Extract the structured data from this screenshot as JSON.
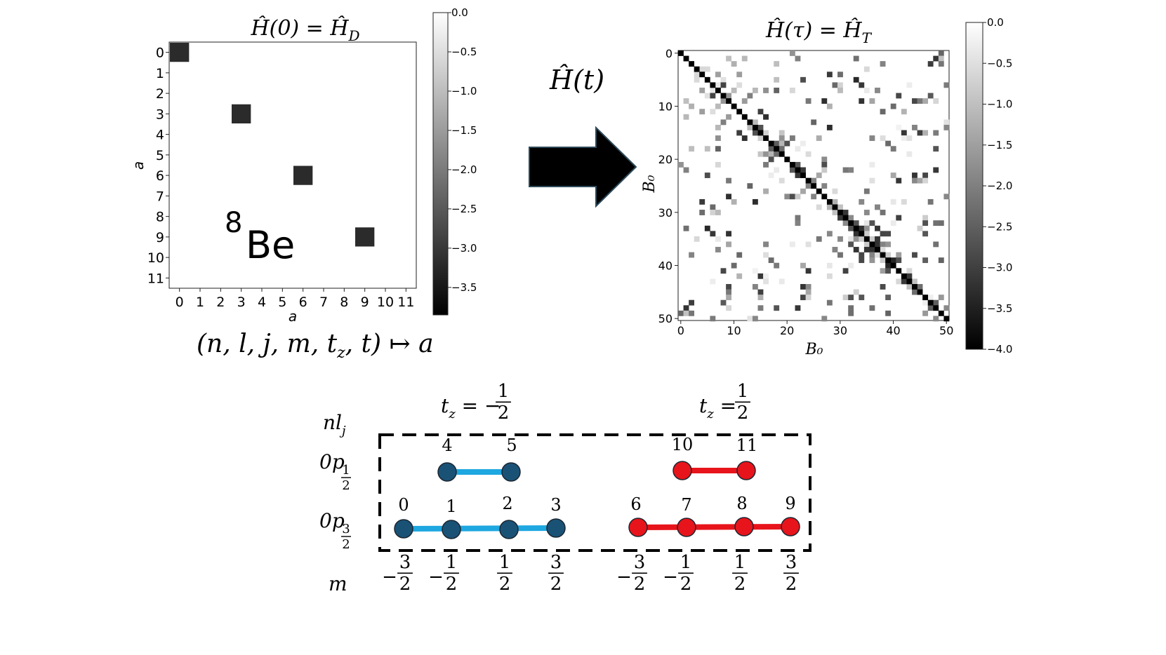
{
  "left_panel": {
    "title": "Ĥ(0) = Ĥ_D",
    "title_main": "Ĥ(0) = Ĥ",
    "title_sub": "D",
    "xlabel": "a",
    "ylabel": "a",
    "ticks": [
      "0",
      "1",
      "2",
      "3",
      "4",
      "5",
      "6",
      "7",
      "8",
      "9",
      "10",
      "11"
    ],
    "nucleus_mass": "8",
    "nucleus_symbol": "Be",
    "mapping_label": "(n, l, j, m, t_z, t) ↦ a",
    "mapping_main": "(n, l, j, m, t",
    "mapping_sub": "z",
    "mapping_tail": ", t) ↦ a"
  },
  "left_colorbar": {
    "ticks": [
      "0.0",
      "−0.5",
      "−1.0",
      "−1.5",
      "−2.0",
      "−2.5",
      "−3.0",
      "−3.5"
    ],
    "values": [
      0.0,
      -0.5,
      -1.0,
      -1.5,
      -2.0,
      -2.5,
      -3.0,
      -3.5
    ],
    "range": [
      -3.85,
      0.0
    ]
  },
  "arrow_label": "Ĥ(t)",
  "right_panel": {
    "title": "Ĥ(τ) = Ĥ_T",
    "title_main": "Ĥ(τ) = Ĥ",
    "title_sub": "T",
    "xlabel": "B₀",
    "ylabel": "B₀",
    "ticks": [
      "0",
      "10",
      "20",
      "30",
      "40",
      "50"
    ],
    "tick_values": [
      0,
      10,
      20,
      30,
      40,
      50
    ]
  },
  "right_colorbar": {
    "ticks": [
      "0.0",
      "−0.5",
      "−1.0",
      "−1.5",
      "−2.0",
      "−2.5",
      "−3.0",
      "−3.5",
      "−4.0"
    ],
    "values": [
      0.0,
      -0.5,
      -1.0,
      -1.5,
      -2.0,
      -2.5,
      -3.0,
      -3.5,
      -4.0
    ],
    "range": [
      -4.0,
      0.0
    ]
  },
  "chart_data": [
    {
      "type": "heatmap",
      "title": "Ĥ(0) = Ĥ_D",
      "xlabel": "a",
      "ylabel": "a",
      "size": 12,
      "cells": [
        [
          0,
          0,
          -3.5
        ],
        [
          3,
          3,
          -3.5
        ],
        [
          6,
          6,
          -3.5
        ],
        [
          9,
          9,
          -3.5
        ]
      ],
      "colormap": "gray",
      "zlim": [
        -3.85,
        0.0
      ]
    },
    {
      "type": "heatmap",
      "title": "Ĥ(τ) = Ĥ_T",
      "xlabel": "B₀",
      "ylabel": "B₀",
      "size": 51,
      "diagonal_value": -4.0,
      "colormap": "gray",
      "zlim": [
        -4.0,
        0.0
      ]
    }
  ],
  "orbital_scheme": {
    "row_header": "nl_j",
    "m_header": "m",
    "group_labels": [
      {
        "main": "t",
        "sub": "z",
        "eq": " = −",
        "num": "1",
        "den": "2"
      },
      {
        "main": "t",
        "sub": "z",
        "eq": " = ",
        "num": "1",
        "den": "2"
      }
    ],
    "shells": [
      {
        "label": "0p",
        "num": "1",
        "den": "2"
      },
      {
        "label": "0p",
        "num": "3",
        "den": "2"
      }
    ],
    "states": [
      {
        "index": "0",
        "shell": 1,
        "group": 0
      },
      {
        "index": "1",
        "shell": 1,
        "group": 0
      },
      {
        "index": "2",
        "shell": 1,
        "group": 0
      },
      {
        "index": "3",
        "shell": 1,
        "group": 0
      },
      {
        "index": "4",
        "shell": 0,
        "group": 0
      },
      {
        "index": "5",
        "shell": 0,
        "group": 0
      },
      {
        "index": "6",
        "shell": 1,
        "group": 1
      },
      {
        "index": "7",
        "shell": 1,
        "group": 1
      },
      {
        "index": "8",
        "shell": 1,
        "group": 1
      },
      {
        "index": "9",
        "shell": 1,
        "group": 1
      },
      {
        "index": "10",
        "shell": 0,
        "group": 1
      },
      {
        "index": "11",
        "shell": 0,
        "group": 1
      }
    ],
    "m_values": [
      {
        "sign": "−",
        "num": "3",
        "den": "2"
      },
      {
        "sign": "−",
        "num": "1",
        "den": "2"
      },
      {
        "sign": "",
        "num": "1",
        "den": "2"
      },
      {
        "sign": "",
        "num": "3",
        "den": "2"
      },
      {
        "sign": "−",
        "num": "3",
        "den": "2"
      },
      {
        "sign": "−",
        "num": "1",
        "den": "2"
      },
      {
        "sign": "",
        "num": "1",
        "den": "2"
      },
      {
        "sign": "",
        "num": "3",
        "den": "2"
      }
    ]
  },
  "colors": {
    "neutron_node": "#1a5276",
    "neutron_line": "#1ea7e0",
    "proton_node": "#e8141b",
    "proton_line": "#e8141b",
    "matrix_dark": "#2b2b2b"
  }
}
